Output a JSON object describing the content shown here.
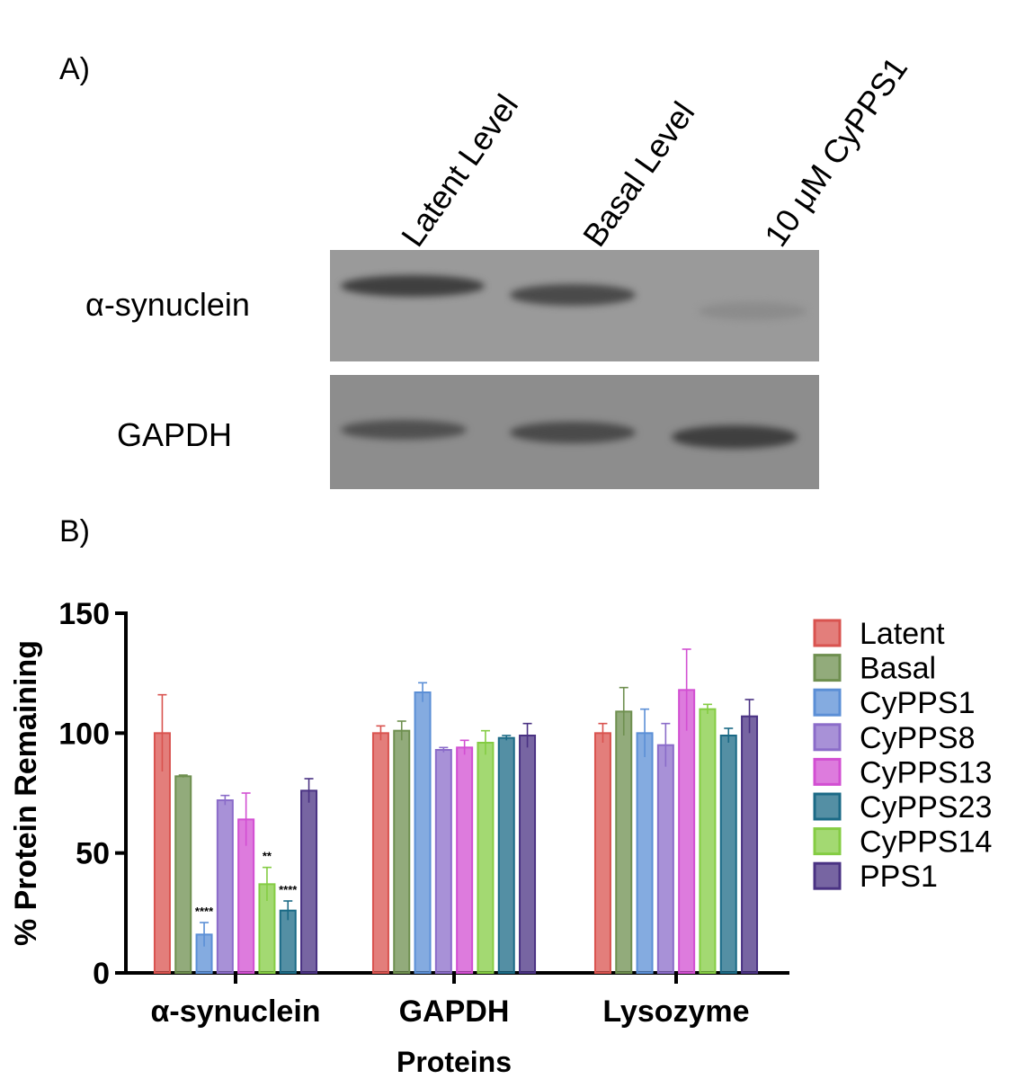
{
  "panel_a": {
    "label": "A)",
    "lanes": [
      "Latent Level",
      "Basal Level",
      "10 μM CyPPS1"
    ],
    "rows": [
      "α-synuclein",
      "GAPDH"
    ]
  },
  "panel_b": {
    "label": "B)"
  },
  "colors": {
    "Latent": "#d9534f",
    "Basal": "#6e8f4f",
    "CyPPS1": "#5b8fd6",
    "CyPPS8": "#8b6cc9",
    "CyPPS13": "#d24fd2",
    "CyPPS23": "#1b6a86",
    "CyPPS14": "#84cc43",
    "PPS1": "#4a3283"
  },
  "chart_data": {
    "type": "bar",
    "title": "",
    "xlabel": "Proteins",
    "ylabel": "% Protein Remaining",
    "ylim": [
      0,
      150
    ],
    "yticks": [
      0,
      50,
      100,
      150
    ],
    "categories": [
      "α-synuclein",
      "GAPDH",
      "Lysozyme"
    ],
    "legend_position": "right",
    "series": [
      {
        "name": "Latent",
        "values": [
          100,
          100,
          100
        ],
        "errors": [
          16,
          3,
          4
        ]
      },
      {
        "name": "Basal",
        "values": [
          82,
          101,
          109
        ],
        "errors": [
          0.5,
          4,
          10
        ]
      },
      {
        "name": "CyPPS1",
        "values": [
          16,
          117,
          100
        ],
        "errors": [
          5,
          4,
          10
        ]
      },
      {
        "name": "CyPPS8",
        "values": [
          72,
          93,
          95
        ],
        "errors": [
          2,
          1,
          9
        ]
      },
      {
        "name": "CyPPS13",
        "values": [
          64,
          94,
          118
        ],
        "errors": [
          11,
          3,
          17
        ]
      },
      {
        "name": "CyPPS14",
        "values": [
          37,
          96,
          110
        ],
        "errors": [
          7,
          5,
          2
        ]
      },
      {
        "name": "CyPPS23",
        "values": [
          26,
          98,
          99
        ],
        "errors": [
          4,
          1,
          3
        ]
      },
      {
        "name": "PPS1",
        "values": [
          76,
          99,
          107
        ],
        "errors": [
          5,
          5,
          7
        ]
      }
    ],
    "annotations": [
      {
        "category": "α-synuclein",
        "series": "CyPPS1",
        "text": "****"
      },
      {
        "category": "α-synuclein",
        "series": "CyPPS14",
        "text": "**"
      },
      {
        "category": "α-synuclein",
        "series": "CyPPS23",
        "text": "****"
      }
    ],
    "legend_order": [
      "Latent",
      "Basal",
      "CyPPS1",
      "CyPPS8",
      "CyPPS13",
      "CyPPS23",
      "CyPPS14",
      "PPS1"
    ]
  }
}
